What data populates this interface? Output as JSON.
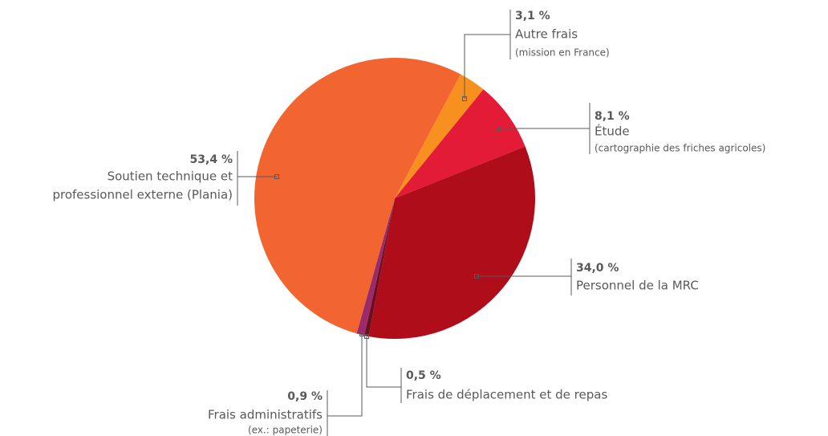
{
  "chart_data": {
    "type": "pie",
    "categories": [
      [
        "Autre frais"
      ],
      [
        "Étude"
      ],
      [
        "Personnel de la MRC"
      ],
      [
        "Frais de déplacement et de repas"
      ],
      [
        "Frais administratifs"
      ],
      [
        "Soutien technique et",
        "professionnel externe (Plania)"
      ]
    ],
    "sublabels": [
      "(mission en France)",
      "(cartographie des friches agricoles)",
      null,
      null,
      "(ex.: papeterie)",
      null
    ],
    "values": [
      3.1,
      8.1,
      34.0,
      0.5,
      0.9,
      53.4
    ],
    "value_labels": [
      "3,1 %",
      "8,1 %",
      "34,0 %",
      "0,5 %",
      "0,9 %",
      "53,4 %"
    ],
    "colors": [
      "#f7901e",
      "#e31b36",
      "#b00d1b",
      "#6d0e1e",
      "#9b2a6b",
      "#f26531"
    ]
  }
}
